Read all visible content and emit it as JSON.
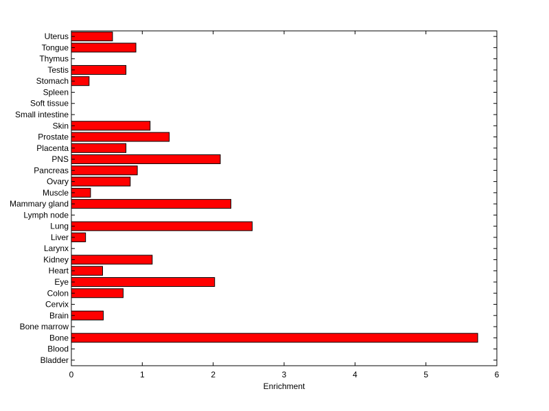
{
  "chart_data": {
    "type": "bar",
    "orientation": "horizontal",
    "title": "",
    "xlabel": "Enrichment",
    "ylabel": "",
    "xlim": [
      0,
      6
    ],
    "xticks": [
      0,
      1,
      2,
      3,
      4,
      5,
      6
    ],
    "grid": false,
    "bar_color": "#ff0000",
    "categories": [
      "Bladder",
      "Blood",
      "Bone",
      "Bone marrow",
      "Brain",
      "Cervix",
      "Colon",
      "Eye",
      "Heart",
      "Kidney",
      "Larynx",
      "Liver",
      "Lung",
      "Lymph node",
      "Mammary gland",
      "Muscle",
      "Ovary",
      "Pancreas",
      "PNS",
      "Placenta",
      "Prostate",
      "Skin",
      "Small intestine",
      "Soft tissue",
      "Spleen",
      "Stomach",
      "Testis",
      "Thymus",
      "Tongue",
      "Uterus"
    ],
    "values": [
      0,
      0,
      5.73,
      0,
      0.45,
      0,
      0.73,
      2.02,
      0.44,
      1.14,
      0,
      0.2,
      2.55,
      0,
      2.25,
      0.27,
      0.83,
      0.93,
      2.1,
      0.77,
      1.38,
      1.11,
      0,
      0,
      0,
      0.25,
      0.77,
      0,
      0.91,
      0.58
    ]
  }
}
